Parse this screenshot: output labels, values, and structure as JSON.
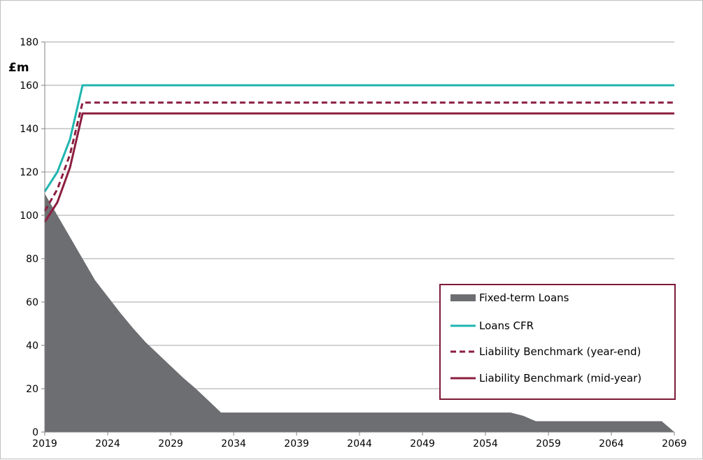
{
  "chart_data": {
    "type": "area",
    "ylabel": "£m",
    "ylim": [
      0,
      180
    ],
    "xlim": [
      2019,
      2069
    ],
    "yticks": [
      0,
      20,
      40,
      60,
      80,
      100,
      120,
      140,
      160,
      180
    ],
    "xticks": [
      2019,
      2024,
      2029,
      2034,
      2039,
      2044,
      2049,
      2054,
      2059,
      2064,
      2069
    ],
    "grid": true,
    "legend_position": "bottom-right",
    "series": [
      {
        "name": "Fixed-term Loans",
        "kind": "area",
        "color": "#6d6e71",
        "x": [
          2019,
          2020,
          2021,
          2022,
          2023,
          2024,
          2025,
          2026,
          2027,
          2028,
          2029,
          2030,
          2031,
          2032,
          2033,
          2034,
          2040,
          2050,
          2055,
          2056,
          2057,
          2058,
          2060,
          2065,
          2068,
          2069
        ],
        "y": [
          110,
          100,
          90,
          80,
          70,
          62.5,
          55,
          48,
          41.5,
          36,
          30.5,
          25,
          20,
          14.5,
          9,
          9,
          9,
          9,
          9,
          9,
          7.5,
          5,
          5,
          5,
          5,
          0
        ]
      },
      {
        "name": "Loans CFR",
        "kind": "line",
        "color": "#1fb5b0",
        "dash": "solid",
        "x": [
          2019,
          2020,
          2021,
          2022,
          2069
        ],
        "y": [
          111,
          120,
          135,
          160,
          160
        ]
      },
      {
        "name": "Liability Benchmark (year-end)",
        "kind": "line",
        "color": "#8b1e3f",
        "dash": "dashed",
        "x": [
          2019,
          2020,
          2021,
          2022,
          2069
        ],
        "y": [
          102,
          112,
          128,
          152,
          152
        ]
      },
      {
        "name": "Liability Benchmark (mid-year)",
        "kind": "line",
        "color": "#8b1e3f",
        "dash": "solid",
        "x": [
          2019,
          2020,
          2021,
          2022,
          2069
        ],
        "y": [
          97,
          106,
          122,
          147,
          147
        ]
      }
    ]
  },
  "colors": {
    "gridline": "#a6a6a6",
    "legend_border": "#7b1a36"
  }
}
